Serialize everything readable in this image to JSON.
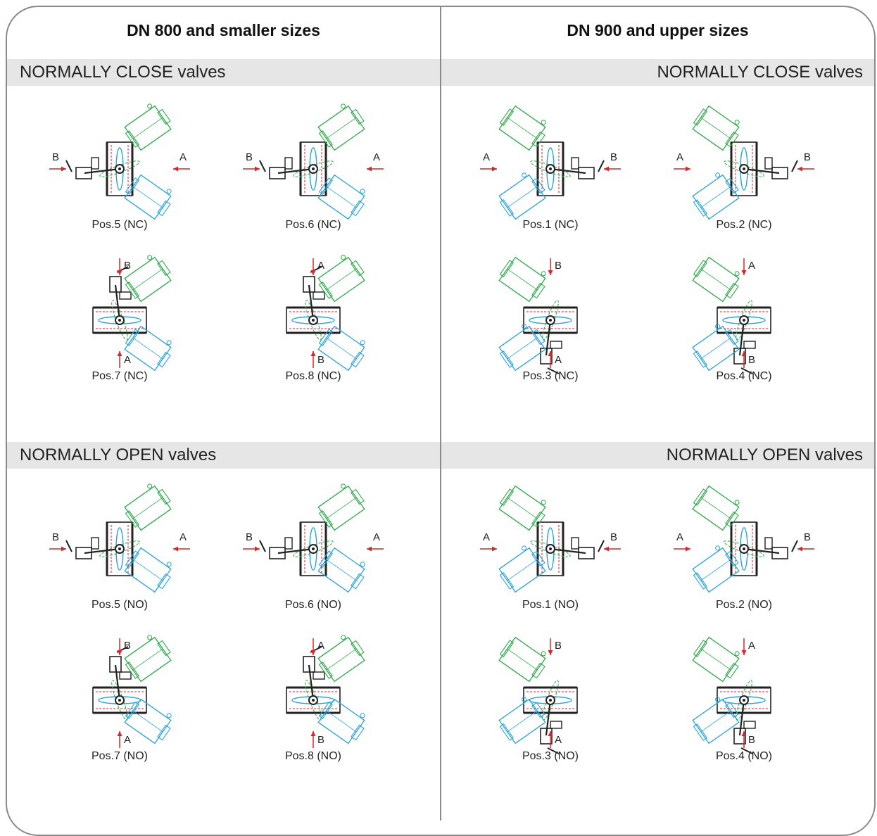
{
  "left_title": "DN 800 and smaller sizes",
  "right_title": "DN 900 and upper sizes",
  "nc_label": "NORMALLY CLOSE valves",
  "no_label": "NORMALLY OPEN valves",
  "colors": {
    "frame": "#8a8a8a",
    "band": "#e6e6e6",
    "arrow": "#d9252b",
    "actuator_green": "#2ea84a",
    "actuator_blue": "#2aa3d8"
  },
  "positions": {
    "left_nc": [
      {
        "caption": "Pos.5 (NC)",
        "a": "A",
        "b": "B"
      },
      {
        "caption": "Pos.6 (NC)",
        "a": "A",
        "b": "B"
      },
      {
        "caption": "Pos.7 (NC)",
        "a": "A",
        "b": "B"
      },
      {
        "caption": "Pos.8 (NC)",
        "a": "A",
        "b": "B"
      }
    ],
    "right_nc": [
      {
        "caption": "Pos.1 (NC)",
        "a": "A",
        "b": "B"
      },
      {
        "caption": "Pos.2 (NC)",
        "a": "A",
        "b": "B"
      },
      {
        "caption": "Pos.3 (NC)",
        "a": "A",
        "b": "B"
      },
      {
        "caption": "Pos.4 (NC)",
        "a": "A",
        "b": "B"
      }
    ],
    "left_no": [
      {
        "caption": "Pos.5 (NO)",
        "a": "A",
        "b": "B"
      },
      {
        "caption": "Pos.6 (NO)",
        "a": "A",
        "b": "B"
      },
      {
        "caption": "Pos.7 (NO)",
        "a": "A",
        "b": "B"
      },
      {
        "caption": "Pos.8 (NO)",
        "a": "A",
        "b": "B"
      }
    ],
    "right_no": [
      {
        "caption": "Pos.1 (NO)",
        "a": "A",
        "b": "B"
      },
      {
        "caption": "Pos.2 (NO)",
        "a": "A",
        "b": "B"
      },
      {
        "caption": "Pos.3 (NO)",
        "a": "A",
        "b": "B"
      },
      {
        "caption": "Pos.4 (NO)",
        "a": "A",
        "b": "B"
      }
    ]
  }
}
